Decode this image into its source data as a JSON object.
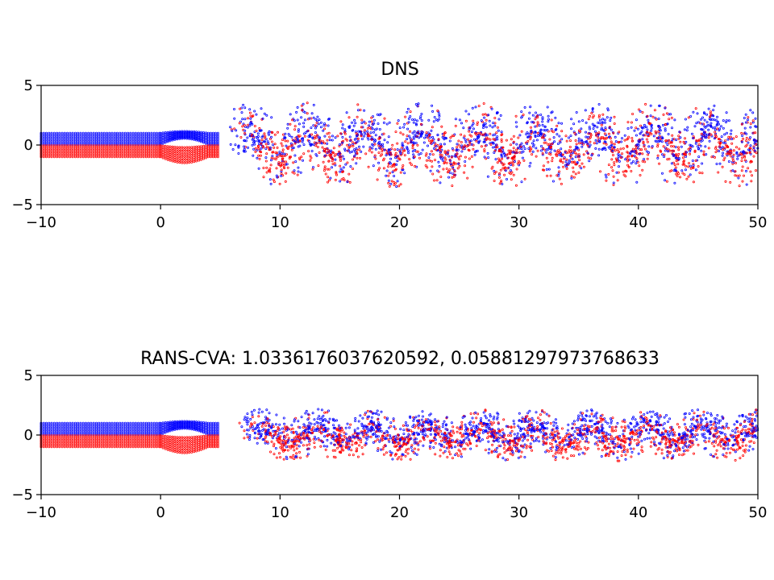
{
  "chart_data": [
    {
      "type": "scatter",
      "title": "DNS",
      "xlabel": "",
      "ylabel": "",
      "xlim": [
        -10,
        50
      ],
      "ylim": [
        -5,
        5
      ],
      "xticks": [
        -10,
        0,
        10,
        20,
        30,
        40,
        50
      ],
      "yticks": [
        -5,
        0,
        5
      ],
      "xtick_labels": [
        "−10",
        "0",
        "10",
        "20",
        "30",
        "40",
        "50"
      ],
      "ytick_labels": [
        "−5",
        "0",
        "5"
      ],
      "grid": false,
      "series_colors": [
        "#0000ff",
        "#ff0000"
      ],
      "flow": {
        "inlet_upper_y": [
          0.05,
          1.0
        ],
        "inlet_lower_y": [
          -1.0,
          -0.05
        ],
        "wake_amplitude": 2.6,
        "vortex_spacing": 4.8,
        "first_vortex_x": 7.5
      }
    },
    {
      "type": "scatter",
      "title": "RANS-CVA: 1.0336176037620592, 0.05881297973768633",
      "xlabel": "",
      "ylabel": "",
      "xlim": [
        -10,
        50
      ],
      "ylim": [
        -5,
        5
      ],
      "xticks": [
        -10,
        0,
        10,
        20,
        30,
        40,
        50
      ],
      "yticks": [
        -5,
        0,
        5
      ],
      "xtick_labels": [
        "−10",
        "0",
        "10",
        "20",
        "30",
        "40",
        "50"
      ],
      "ytick_labels": [
        "−5",
        "0",
        "5"
      ],
      "grid": false,
      "series_colors": [
        "#0000ff",
        "#ff0000"
      ],
      "flow": {
        "inlet_upper_y": [
          0.05,
          1.0
        ],
        "inlet_lower_y": [
          -1.0,
          -0.05
        ],
        "wake_amplitude": 1.6,
        "vortex_spacing": 4.6,
        "first_vortex_x": 8.5
      }
    }
  ]
}
